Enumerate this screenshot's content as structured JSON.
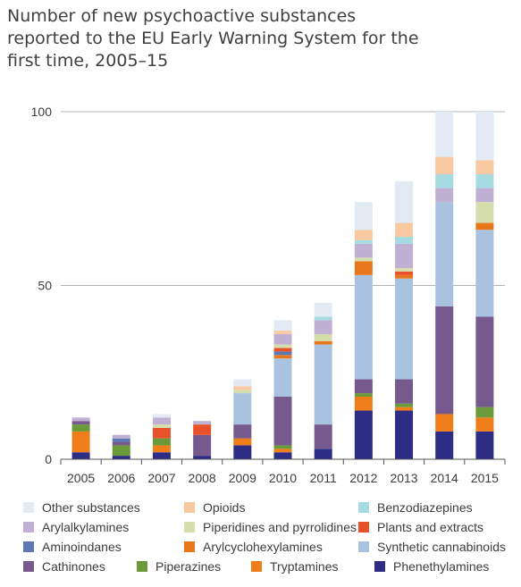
{
  "title_lines": [
    "Number of new psychoactive substances",
    "reported to the EU Early Warning System for the",
    "first time, 2005–15"
  ],
  "chart_data": {
    "type": "bar",
    "stacked": true,
    "title": "Number of new psychoactive substances reported to the EU Early Warning System for the first time, 2005–15",
    "xlabel": "",
    "ylabel": "",
    "ylim": [
      0,
      100
    ],
    "yticks": [
      0,
      50,
      100
    ],
    "grid": true,
    "legend_position": "bottom",
    "categories": [
      "2005",
      "2006",
      "2007",
      "2008",
      "2009",
      "2010",
      "2011",
      "2012",
      "2013",
      "2014",
      "2015"
    ],
    "series": [
      {
        "name": "Phenethylamines",
        "color": "#2e2d86",
        "values": [
          2,
          1,
          2,
          1,
          4,
          2,
          3,
          14,
          14,
          8,
          8
        ]
      },
      {
        "name": "Tryptamines",
        "color": "#ee7d1a",
        "values": [
          6,
          0,
          2,
          0,
          2,
          1,
          0,
          4,
          1,
          5,
          4
        ]
      },
      {
        "name": "Piperazines",
        "color": "#6a9a3a",
        "values": [
          2,
          3,
          2,
          0,
          0,
          1,
          0,
          1,
          1,
          0,
          3
        ]
      },
      {
        "name": "Cathinones",
        "color": "#765a8d",
        "values": [
          1,
          1,
          0,
          6,
          4,
          14,
          7,
          4,
          7,
          31,
          26
        ]
      },
      {
        "name": "Synthetic cannabinoids",
        "color": "#a9c2df",
        "values": [
          0,
          0,
          0,
          0,
          9,
          11,
          23,
          30,
          29,
          30,
          25
        ]
      },
      {
        "name": "Arylcyclohexylamines",
        "color": "#e8771c",
        "values": [
          0,
          0,
          0,
          0,
          0,
          1,
          1,
          4,
          1,
          0,
          2
        ]
      },
      {
        "name": "Aminoindanes",
        "color": "#5c78b3",
        "values": [
          0,
          1,
          0,
          0,
          0,
          1,
          0,
          0,
          0,
          0,
          0
        ]
      },
      {
        "name": "Plants and extracts",
        "color": "#e9512a",
        "values": [
          0,
          0,
          3,
          3,
          0,
          1,
          0,
          0,
          1,
          0,
          0
        ]
      },
      {
        "name": "Piperidines and pyrrolidines",
        "color": "#d6deae",
        "values": [
          0,
          0,
          1,
          0,
          1,
          1,
          2,
          1,
          1,
          0,
          6
        ]
      },
      {
        "name": "Arylalkylamines",
        "color": "#c0b0d3",
        "values": [
          1,
          1,
          2,
          1,
          0,
          3,
          4,
          4,
          7,
          4,
          4
        ]
      },
      {
        "name": "Benzodiazepines",
        "color": "#a7dbe2",
        "values": [
          0,
          0,
          0,
          0,
          0,
          0,
          1,
          1,
          2,
          4,
          4
        ]
      },
      {
        "name": "Opioids",
        "color": "#f9c9a2",
        "values": [
          0,
          0,
          0,
          0,
          1,
          1,
          0,
          3,
          4,
          5,
          4
        ]
      },
      {
        "name": "Other substances",
        "color": "#e2ebf4",
        "values": [
          0,
          0,
          1,
          0,
          2,
          3,
          4,
          8,
          12,
          13,
          14
        ]
      }
    ]
  },
  "legend": {
    "rows": [
      [
        "Other substances",
        "Opioids",
        "Benzodiazepines"
      ],
      [
        "Arylalkylamines",
        "Piperidines and pyrrolidines",
        "Plants and extracts"
      ],
      [
        "Aminoindanes",
        "Arylcyclohexylamines",
        "Synthetic cannabinoids"
      ],
      [
        "Cathinones",
        "Piperazines",
        "Tryptamines",
        "Phenethylamines"
      ]
    ]
  }
}
